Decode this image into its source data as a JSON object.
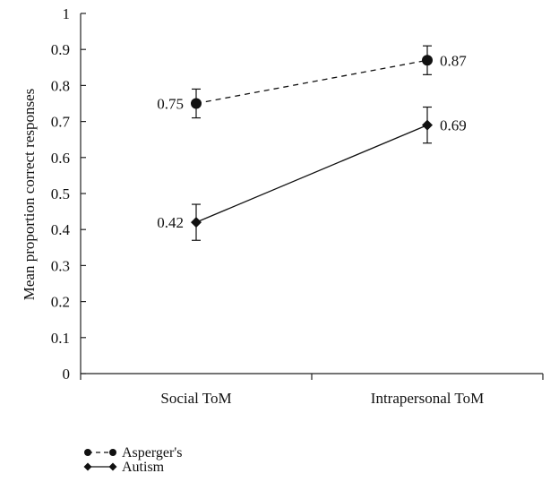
{
  "chart_data": {
    "type": "line",
    "categories": [
      "Social ToM",
      "Intrapersonal ToM"
    ],
    "ylabel": "Mean proportion correct responses",
    "xlabel": "",
    "ylim": [
      0,
      1
    ],
    "yticks": [
      "0",
      "0.1",
      "0.2",
      "0.3",
      "0.4",
      "0.5",
      "0.6",
      "0.7",
      "0.8",
      "0.9",
      "1"
    ],
    "grid": false,
    "legend_position": "bottom-left",
    "series": [
      {
        "name": "Asperger's",
        "marker": "circle",
        "line_style": "dashed",
        "values": [
          0.75,
          0.87
        ],
        "error": [
          0.04,
          0.04
        ],
        "value_labels": [
          "0.75",
          "0.87"
        ]
      },
      {
        "name": "Autism",
        "marker": "diamond",
        "line_style": "solid",
        "values": [
          0.42,
          0.69
        ],
        "error": [
          0.05,
          0.05
        ],
        "value_labels": [
          "0.42",
          "0.69"
        ]
      }
    ]
  }
}
